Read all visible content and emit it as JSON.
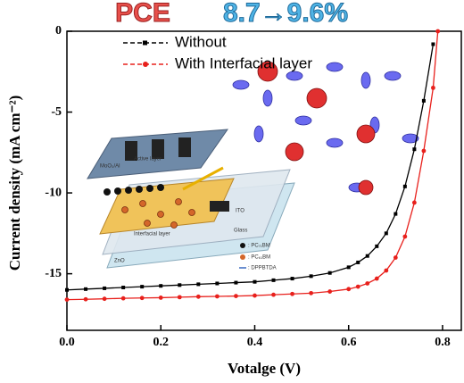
{
  "chart_data": {
    "type": "line",
    "title_parts": [
      "PCE",
      "8.7→9.6%"
    ],
    "x_label": "Votalge (V)",
    "y_label": "Current density (mA cm⁻²)",
    "x": [
      0,
      0.04,
      0.08,
      0.12,
      0.16,
      0.2,
      0.24,
      0.28,
      0.32,
      0.36,
      0.4,
      0.44,
      0.48,
      0.52,
      0.56,
      0.6,
      0.62,
      0.64,
      0.66,
      0.68,
      0.7,
      0.72,
      0.74,
      0.76,
      0.78,
      0.79
    ],
    "series": [
      {
        "name": "Without",
        "color": "#000000",
        "marker": "square",
        "values": [
          -16.0,
          -15.95,
          -15.9,
          -15.85,
          -15.8,
          -15.75,
          -15.7,
          -15.65,
          -15.6,
          -15.55,
          -15.5,
          -15.4,
          -15.3,
          -15.15,
          -14.95,
          -14.6,
          -14.3,
          -13.9,
          -13.3,
          -12.5,
          -11.3,
          -9.6,
          -7.3,
          -4.3,
          -0.8,
          null
        ]
      },
      {
        "name": "With Interfacial layer",
        "color": "#e8201c",
        "marker": "circle",
        "values": [
          -16.6,
          -16.58,
          -16.55,
          -16.52,
          -16.5,
          -16.48,
          -16.45,
          -16.42,
          -16.4,
          -16.38,
          -16.35,
          -16.3,
          -16.25,
          -16.2,
          -16.1,
          -15.95,
          -15.8,
          -15.6,
          -15.3,
          -14.8,
          -14.0,
          -12.7,
          -10.6,
          -7.4,
          -3.5,
          0
        ]
      }
    ],
    "xlim": [
      0,
      0.84
    ],
    "ylim": [
      -18.5,
      0
    ],
    "xticks": [
      {
        "value": 0,
        "label": "0.0"
      },
      0.2,
      0.4,
      0.6,
      0.8
    ],
    "yticks": [
      0,
      -5,
      -10,
      -15
    ],
    "legend": "upper left",
    "inset_labels": [
      "Active layer",
      "MoO₃/Al",
      "Interfacial layer",
      "ITO",
      "Glass",
      "ZnO",
      ": PC₇₁BM",
      ": PC₆₁BM",
      ": DPPBTDA"
    ]
  }
}
